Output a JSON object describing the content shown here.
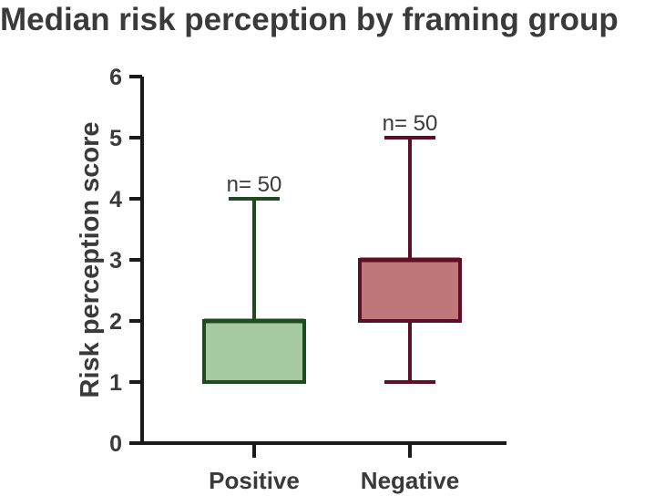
{
  "chart_data": {
    "type": "box",
    "title": "Median risk perception by framing group",
    "xlabel": "",
    "ylabel": "Risk perception score",
    "ylim": [
      0,
      6
    ],
    "yticks": [
      0,
      1,
      2,
      3,
      4,
      5,
      6
    ],
    "grid": false,
    "legend": "none",
    "categories": [
      "Positive",
      "Negative"
    ],
    "series": [
      {
        "name": "Positive",
        "min": 1,
        "q1": 1,
        "median": 2,
        "q3": 2,
        "max": 4,
        "n_label": "n= 50",
        "fill": "#a5c9a1",
        "stroke": "#1f4a22"
      },
      {
        "name": "Negative",
        "min": 1,
        "q1": 2,
        "median": 3,
        "q3": 3,
        "max": 5,
        "n_label": "n= 50",
        "fill": "#bf7779",
        "stroke": "#5e0f25"
      }
    ],
    "axis_color": "#1a1a1a"
  }
}
